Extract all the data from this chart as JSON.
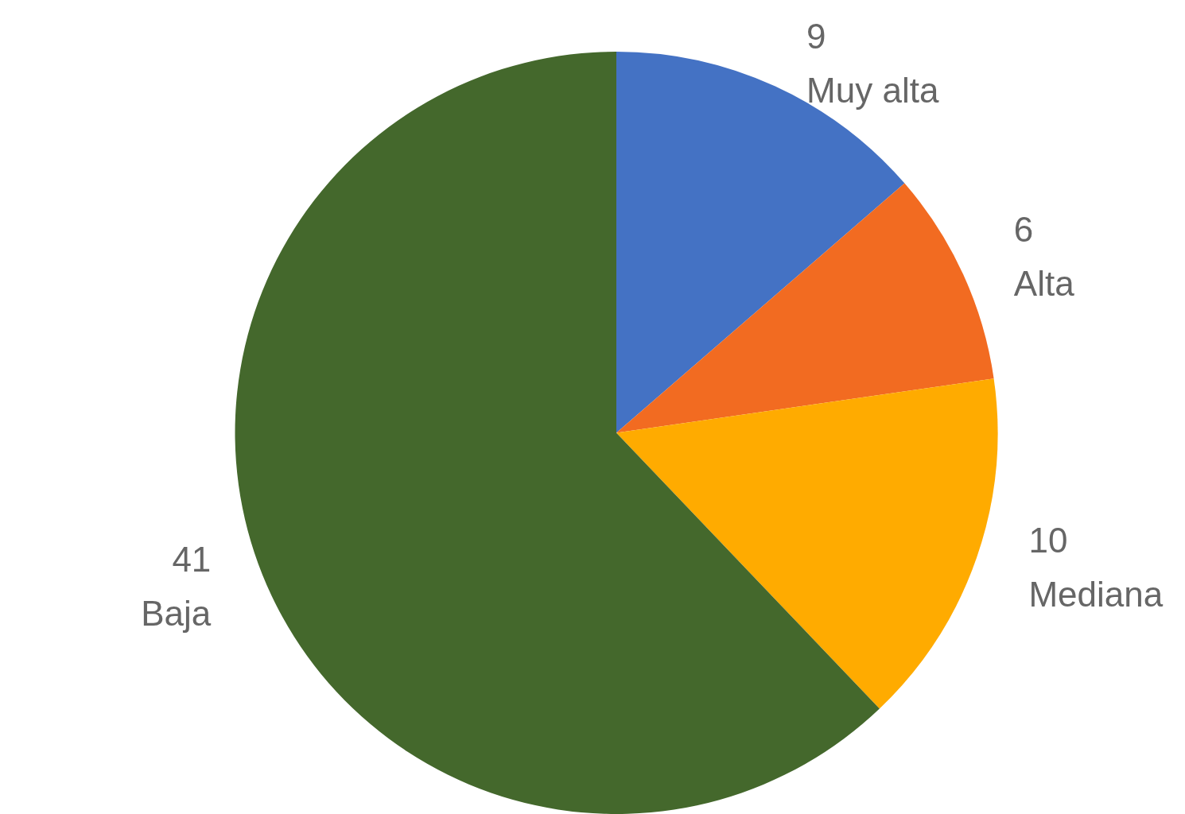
{
  "chart_data": {
    "type": "pie",
    "categories": [
      "Muy alta",
      "Alta",
      "Mediana",
      "Baja"
    ],
    "values": [
      9,
      6,
      10,
      41
    ],
    "colors": [
      "#4472c4",
      "#f26b21",
      "#ffab00",
      "#44682c"
    ],
    "data_labels": true,
    "legend": false
  }
}
